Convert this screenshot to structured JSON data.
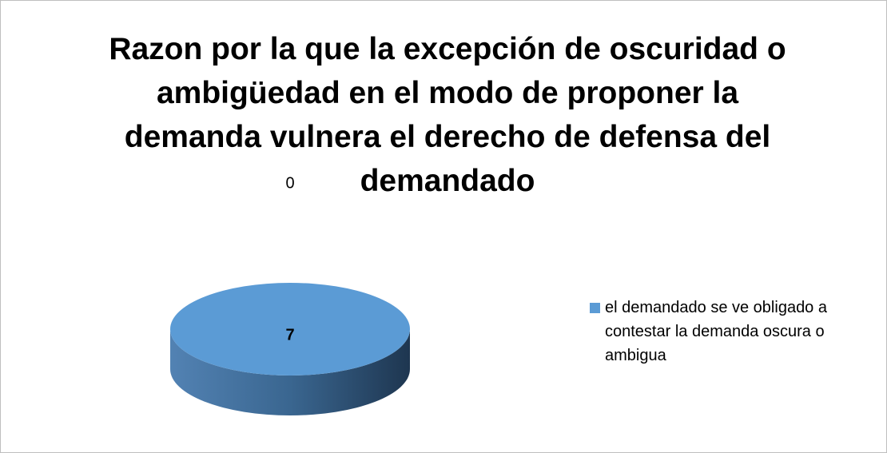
{
  "chart_data": {
    "type": "pie",
    "title": "Razon por la que la excepción de oscuridad o ambigüedad en el modo de proponer la demanda vulnera el derecho de defensa del demandado",
    "categories": [
      "el demandado se ve obligado a contestar la demanda oscura o ambigua",
      null
    ],
    "values": [
      7,
      0
    ],
    "colors": [
      "#5b9bd5",
      "#ed7d31"
    ],
    "legend": "right"
  }
}
